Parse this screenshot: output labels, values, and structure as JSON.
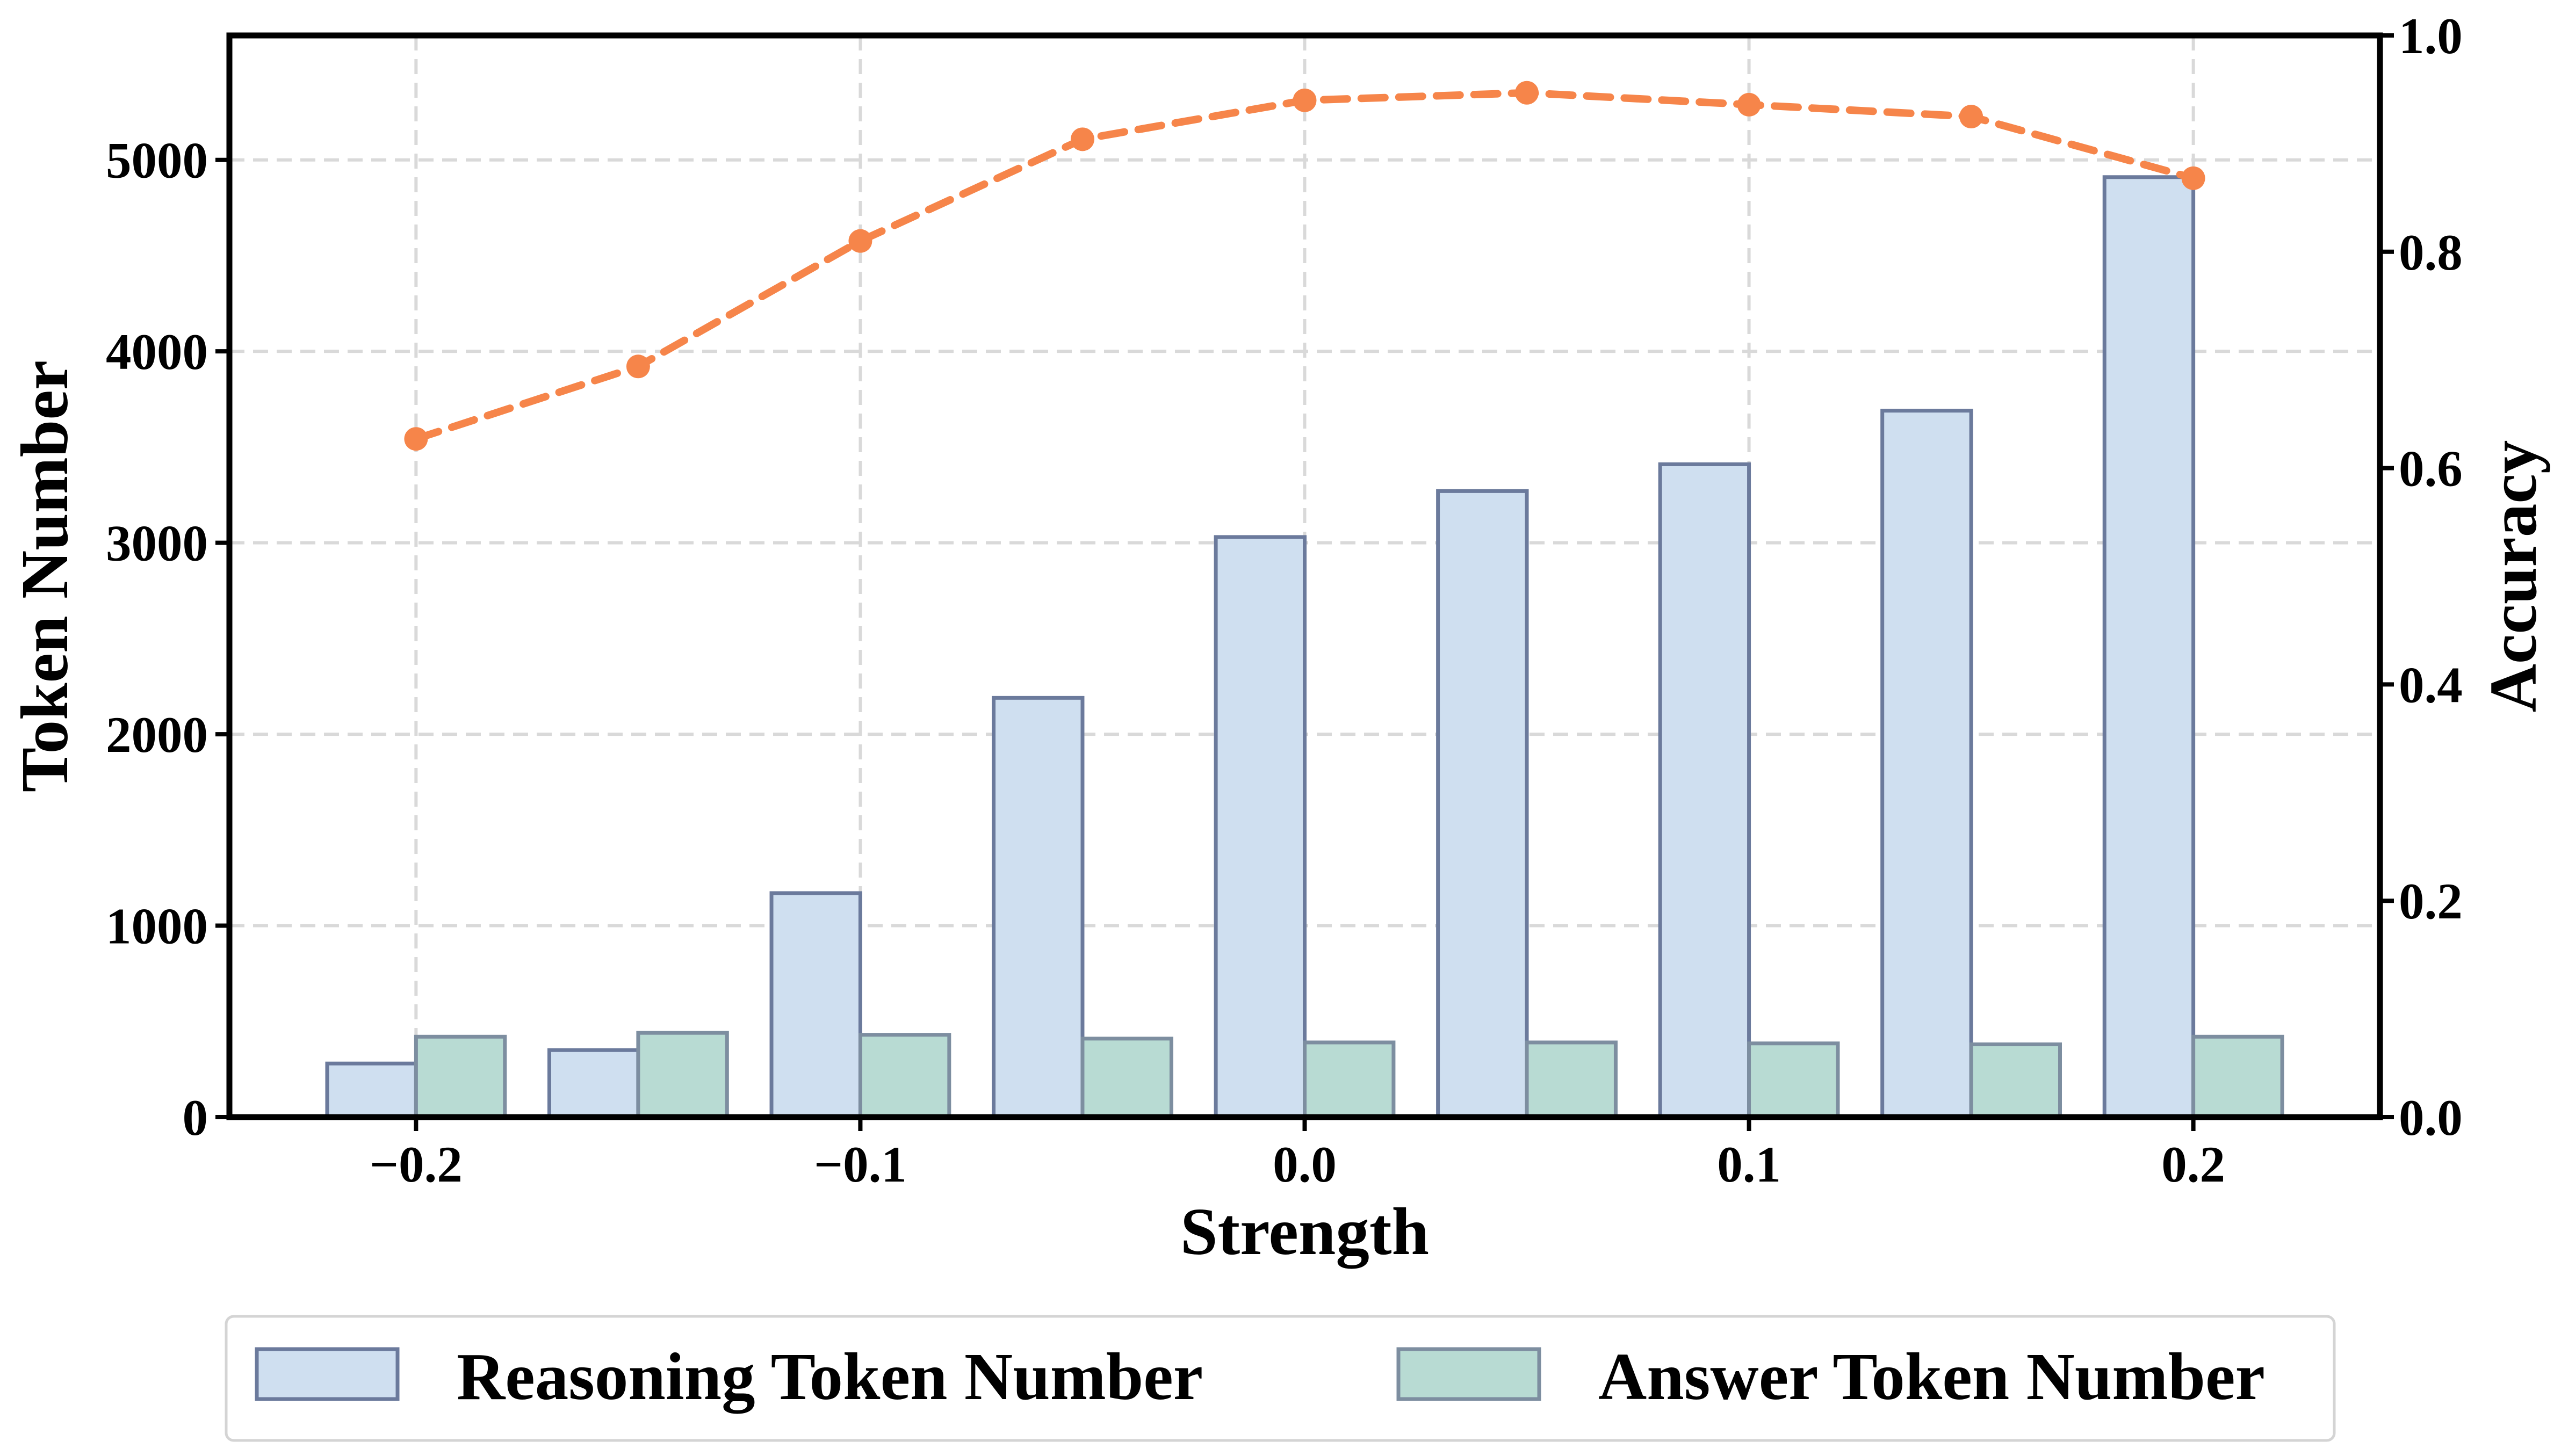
{
  "chart_data": {
    "type": "bar",
    "title": "",
    "xlabel": "Strength",
    "ylabel": "Token Number",
    "ylabel_right": "Accuracy",
    "x": [
      -0.2,
      -0.15,
      -0.1,
      -0.05,
      0.0,
      0.05,
      0.1,
      0.15,
      0.2
    ],
    "xlim": [
      -0.242,
      0.242
    ],
    "ylim": [
      0,
      5650
    ],
    "ylim_right": [
      0,
      1.0
    ],
    "x_ticks": [
      -0.2,
      -0.1,
      0.0,
      0.1,
      0.2
    ],
    "x_tick_labels": [
      "−0.2",
      "−0.1",
      "0.0",
      "0.1",
      "0.2"
    ],
    "y_ticks": [
      0,
      1000,
      2000,
      3000,
      4000,
      5000
    ],
    "y_tick_labels": [
      "0",
      "1000",
      "2000",
      "3000",
      "4000",
      "5000"
    ],
    "y_right_ticks": [
      0.0,
      0.2,
      0.4,
      0.6,
      0.8,
      1.0
    ],
    "y_right_tick_labels": [
      "0.0",
      "0.2",
      "0.4",
      "0.6",
      "0.8",
      "1.0"
    ],
    "grid": true,
    "legend_position": "bottom-center, below plot",
    "series": [
      {
        "name": "Reasoning Token Number",
        "type": "bar",
        "axis": "left",
        "color": "#cfdff0",
        "edge_color": "#6b7a9c",
        "values": [
          280,
          350,
          1170,
          2190,
          3030,
          3270,
          3410,
          3690,
          4910
        ]
      },
      {
        "name": "Answer Token Number",
        "type": "bar",
        "axis": "left",
        "color": "#b8dbd3",
        "edge_color": "#7d8ea0",
        "values": [
          420,
          440,
          430,
          410,
          390,
          390,
          385,
          380,
          420
        ]
      },
      {
        "name": "Accuracy",
        "type": "line",
        "axis": "right",
        "color": "#f6854a",
        "values": [
          0.627,
          0.694,
          0.81,
          0.904,
          0.94,
          0.947,
          0.936,
          0.925,
          0.868
        ]
      }
    ]
  }
}
